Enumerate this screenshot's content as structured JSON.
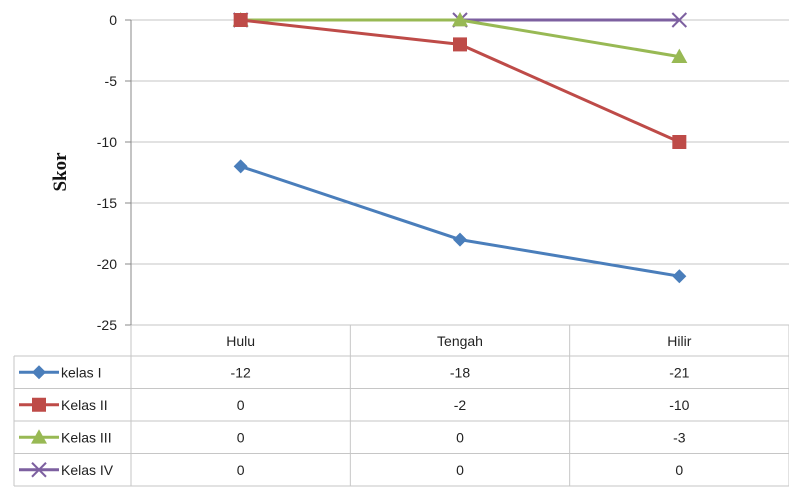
{
  "chart_data": {
    "type": "line",
    "title": "",
    "xlabel": "",
    "ylabel": "Skor",
    "categories": [
      "Hulu",
      "Tengah",
      "Hilir"
    ],
    "ylim": [
      -25,
      0
    ],
    "yticks": [
      0,
      -5,
      -10,
      -15,
      -20,
      -25
    ],
    "ytick_labels": [
      "0",
      "-5",
      "-10",
      "-15",
      "-20",
      "-25"
    ],
    "grid": true,
    "legend": "data-table",
    "series": [
      {
        "name": "kelas I",
        "values": [
          -12,
          -18,
          -21
        ],
        "value_labels": [
          "-12",
          "-18",
          "-21"
        ],
        "color": "#4a7ebb",
        "marker": "diamond"
      },
      {
        "name": "Kelas II",
        "values": [
          0,
          -2,
          -10
        ],
        "value_labels": [
          "0",
          "-2",
          "-10"
        ],
        "color": "#be4b48",
        "marker": "square"
      },
      {
        "name": "Kelas III",
        "values": [
          0,
          0,
          -3
        ],
        "value_labels": [
          "0",
          "0",
          "-3"
        ],
        "color": "#98b954",
        "marker": "triangle"
      },
      {
        "name": "Kelas IV",
        "values": [
          0,
          0,
          0
        ],
        "value_labels": [
          "0",
          "0",
          "0"
        ],
        "color": "#7d60a0",
        "marker": "x"
      }
    ]
  }
}
